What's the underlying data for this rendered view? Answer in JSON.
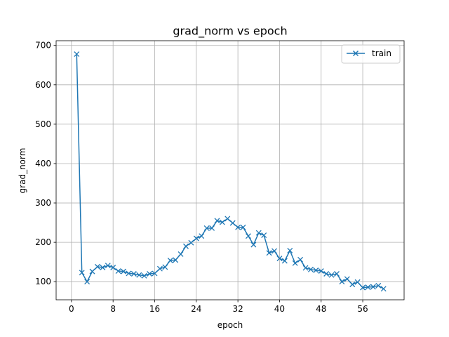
{
  "chart_data": {
    "type": "line",
    "title": "grad_norm vs epoch",
    "xlabel": "epoch",
    "ylabel": "grad_norm",
    "xlim": [
      -2.95,
      63.95
    ],
    "ylim": [
      54,
      712
    ],
    "xticks": [
      0,
      8,
      16,
      24,
      32,
      40,
      48,
      56
    ],
    "yticks": [
      100,
      200,
      300,
      400,
      500,
      600,
      700
    ],
    "grid": true,
    "legend_position": "upper right",
    "series": [
      {
        "name": "train",
        "color": "#1f77b4",
        "marker": "x",
        "x": [
          1,
          2,
          3,
          4,
          5,
          6,
          7,
          8,
          9,
          10,
          11,
          12,
          13,
          14,
          15,
          16,
          17,
          18,
          19,
          20,
          21,
          22,
          23,
          24,
          25,
          26,
          27,
          28,
          29,
          30,
          31,
          32,
          33,
          34,
          35,
          36,
          37,
          38,
          39,
          40,
          41,
          42,
          43,
          44,
          45,
          46,
          47,
          48,
          49,
          50,
          51,
          52,
          53,
          54,
          55,
          56,
          57,
          58,
          59,
          60
        ],
        "y": [
          678,
          123,
          100,
          126,
          138,
          136,
          141,
          136,
          127,
          126,
          121,
          120,
          117,
          115,
          120,
          121,
          133,
          137,
          154,
          155,
          170,
          190,
          199,
          210,
          216,
          236,
          236,
          255,
          251,
          260,
          249,
          238,
          238,
          216,
          194,
          224,
          218,
          173,
          178,
          159,
          153,
          179,
          147,
          156,
          135,
          131,
          129,
          127,
          120,
          117,
          120,
          100,
          107,
          93,
          99,
          85,
          86,
          87,
          90,
          82
        ]
      }
    ]
  }
}
